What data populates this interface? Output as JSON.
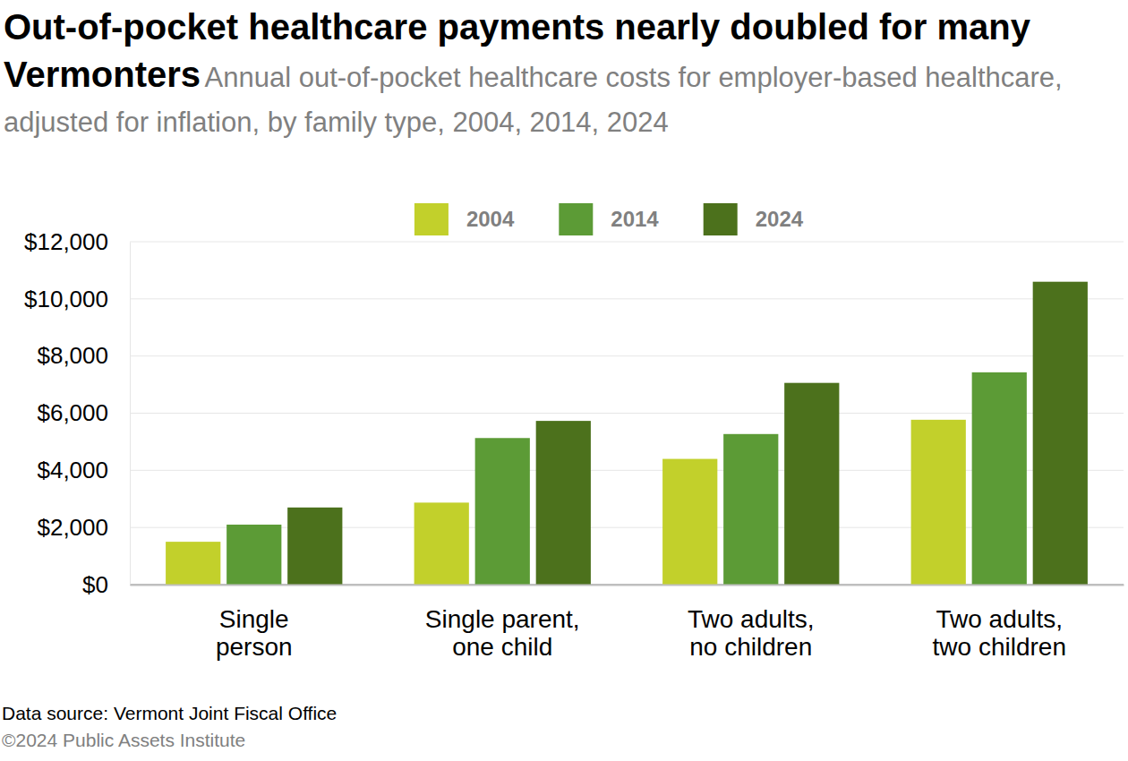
{
  "chart_data": {
    "type": "bar",
    "title": "Out-of-pocket healthcare payments nearly doubled for many Vermonters",
    "subtitle": "Annual out-of-pocket healthcare costs for employer-based healthcare, adjusted for inflation, by family type, 2004, 2014, 2024",
    "source": "Data source: Vermont Joint Fiscal Office",
    "credit": "©2024 Public Assets Institute",
    "categories": [
      "Single\nperson",
      "Single parent,\none child",
      "Two adults,\nno children",
      "Two adults,\ntwo children"
    ],
    "series": [
      {
        "name": "2004",
        "color": "#c2d02b",
        "values": [
          1500,
          2870,
          4400,
          5770
        ]
      },
      {
        "name": "2014",
        "color": "#5c9b36",
        "values": [
          2100,
          5130,
          5270,
          7430
        ]
      },
      {
        "name": "2024",
        "color": "#4c711c",
        "values": [
          2700,
          5730,
          7060,
          10600
        ]
      }
    ],
    "ylim": [
      0,
      12000
    ],
    "yticks": [
      {
        "value": 0,
        "label": "$0"
      },
      {
        "value": 2000,
        "label": "$2,000"
      },
      {
        "value": 4000,
        "label": "$4,000"
      },
      {
        "value": 6000,
        "label": "$6,000"
      },
      {
        "value": 8000,
        "label": "$8,000"
      },
      {
        "value": 10000,
        "label": "$10,000"
      },
      {
        "value": 12000,
        "label": "$12,000"
      }
    ],
    "grid": true,
    "legend": "top"
  }
}
